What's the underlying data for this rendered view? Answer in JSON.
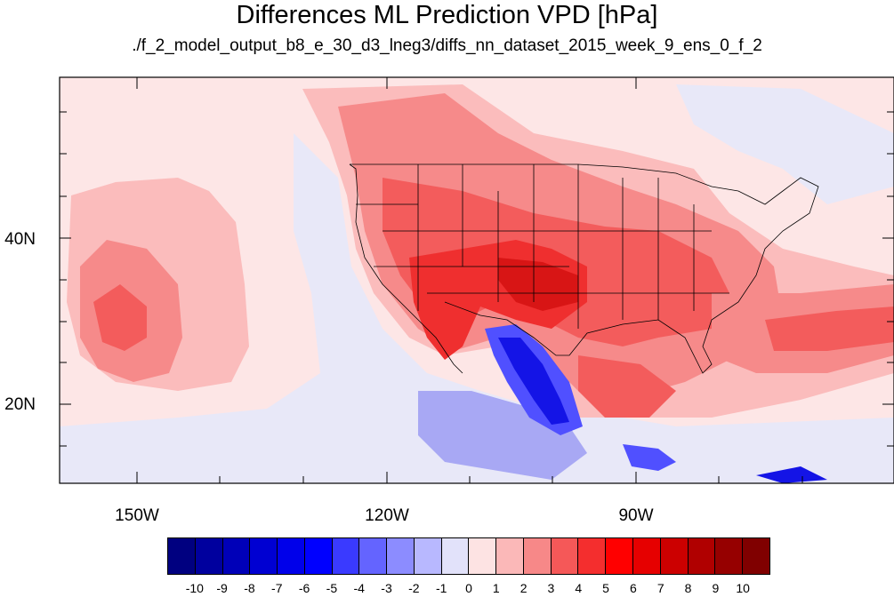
{
  "header": {
    "title": "Differences ML Prediction VPD [hPa]",
    "subtitle": "./f_2_model_output_b8_e_30_d3_lneg3/diffs_nn_dataset_2015_week_9_ens_0_f_2"
  },
  "axes": {
    "lon_labels": [
      "150W",
      "120W",
      "90W"
    ],
    "lat_labels": [
      "40N",
      "20N"
    ]
  },
  "colorbar": {
    "labels": [
      "-10",
      "-9",
      "-8",
      "-7",
      "-6",
      "-5",
      "-4",
      "-3",
      "-2",
      "-1",
      "0",
      "1",
      "2",
      "3",
      "4",
      "5",
      "6",
      "7",
      "8",
      "9",
      "10"
    ],
    "colors": [
      "#000080",
      "#00009e",
      "#0000b8",
      "#0000d2",
      "#0000ea",
      "#0000ff",
      "#3a3aff",
      "#6464ff",
      "#8c8cff",
      "#b8b8ff",
      "#e2e2fa",
      "#fde3e3",
      "#fbb8b8",
      "#f78888",
      "#f55858",
      "#f42e2e",
      "#ff0000",
      "#e60000",
      "#cc0000",
      "#b00000",
      "#960000",
      "#800000"
    ]
  },
  "map_colors": {
    "ocean_bg": "#fde6e6",
    "neutral": "#e8e8f8",
    "light_red": "#fbbcbc",
    "med_red": "#f68a8a",
    "red": "#f35c5c",
    "strong_red": "#ef2f2f",
    "deep_red": "#d81515",
    "light_blue": "#a8a8f4",
    "blue": "#5050ff",
    "deep_blue": "#1414e6"
  }
}
